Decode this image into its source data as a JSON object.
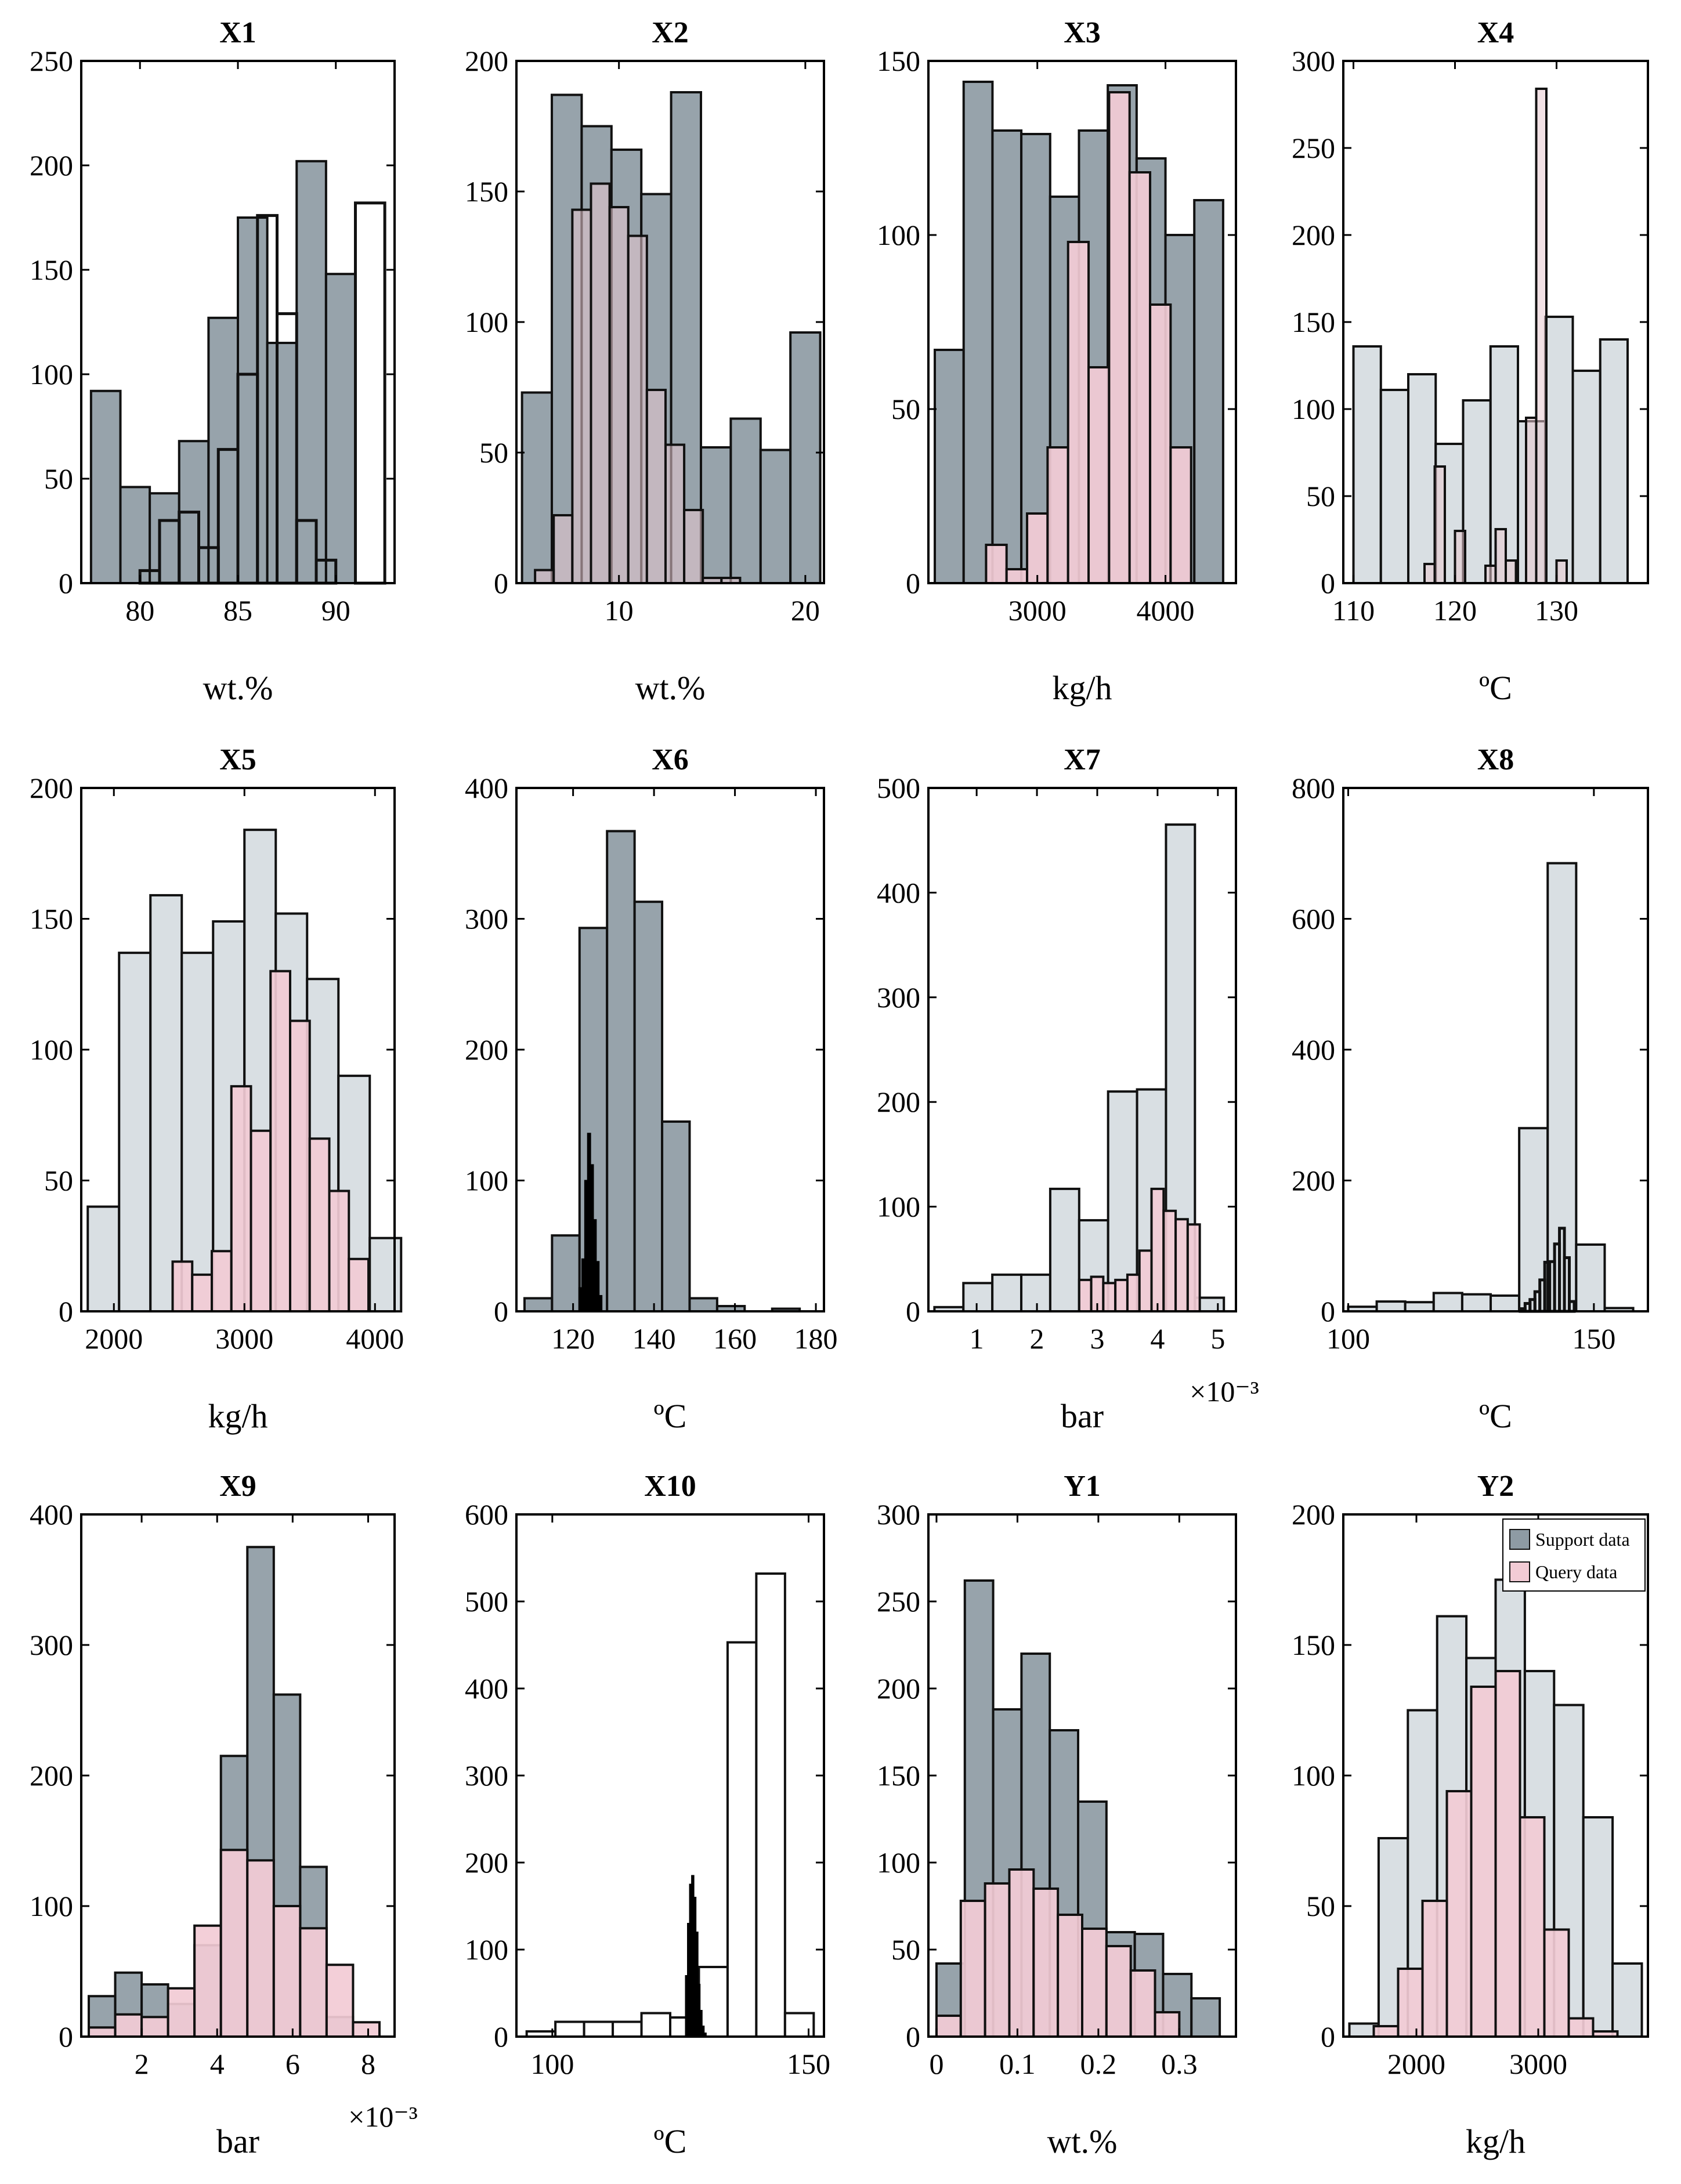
{
  "colors": {
    "support": "#8e9ba4",
    "support_light": "#d7dde1",
    "query": "#f2cbd5",
    "edge": "#111111",
    "axis": "#000000"
  },
  "legend": {
    "support_label": "Support data",
    "query_label": "Query data"
  },
  "chart_data": [
    {
      "type": "histogram",
      "title": "X1",
      "xlabel": "wt.%",
      "ylabel": "",
      "xlim": [
        77,
        93
      ],
      "ylim": [
        0,
        250
      ],
      "xticks": [
        80,
        85,
        90
      ],
      "yticks": [
        0,
        50,
        100,
        150,
        200,
        250
      ],
      "series": [
        {
          "name": "Support data",
          "edges": [
            77.5,
            79,
            80.5,
            82,
            83.5,
            85,
            86.5,
            88,
            89.5,
            91
          ],
          "counts": [
            92,
            46,
            43,
            68,
            127,
            175,
            115,
            202,
            148
          ],
          "style": "support"
        },
        {
          "name": "Query data",
          "edges": [
            80,
            81,
            82,
            83,
            84,
            85,
            86,
            87,
            88,
            89,
            90,
            91,
            92.5
          ],
          "counts": [
            6,
            30,
            34,
            17,
            64,
            100,
            176,
            129,
            30,
            11,
            0,
            182
          ],
          "style": "outline"
        }
      ]
    },
    {
      "type": "histogram",
      "title": "X2",
      "xlabel": "wt.%",
      "ylabel": "",
      "xlim": [
        4.5,
        21
      ],
      "ylim": [
        0,
        200
      ],
      "xticks": [
        10,
        20
      ],
      "yticks": [
        0,
        50,
        100,
        150,
        200
      ],
      "series": [
        {
          "name": "Support data",
          "edges": [
            4.8,
            6.4,
            8,
            9.6,
            11.2,
            12.8,
            14.4,
            16,
            17.6,
            19.2,
            20.8
          ],
          "counts": [
            73,
            187,
            175,
            166,
            149,
            188,
            52,
            63,
            51,
            96
          ],
          "style": "support"
        },
        {
          "name": "Query data",
          "edges": [
            5.5,
            6.5,
            7.5,
            8.5,
            9.5,
            10.5,
            11.5,
            12.5,
            13.5,
            14.5,
            15.5,
            16.5
          ],
          "counts": [
            5,
            26,
            143,
            153,
            144,
            133,
            74,
            53,
            28,
            2,
            2
          ],
          "style": "query_dark"
        }
      ]
    },
    {
      "type": "histogram",
      "title": "X3",
      "xlabel": "kg/h",
      "ylabel": "",
      "xlim": [
        2150,
        4550
      ],
      "ylim": [
        0,
        150
      ],
      "xticks": [
        3000,
        4000
      ],
      "yticks": [
        0,
        50,
        100,
        150
      ],
      "series": [
        {
          "name": "Support data",
          "edges": [
            2200,
            2425,
            2650,
            2875,
            3100,
            3325,
            3550,
            3775,
            4000,
            4225,
            4450
          ],
          "counts": [
            67,
            144,
            130,
            129,
            111,
            130,
            143,
            122,
            100,
            110
          ],
          "style": "support"
        },
        {
          "name": "Query data",
          "edges": [
            2600,
            2760,
            2920,
            3080,
            3240,
            3400,
            3560,
            3720,
            3880,
            4040,
            4200
          ],
          "counts": [
            11,
            4,
            20,
            39,
            98,
            62,
            141,
            118,
            80,
            39
          ],
          "style": "query"
        }
      ]
    },
    {
      "type": "histogram",
      "title": "X4",
      "xlabel": "ºC",
      "ylabel": "",
      "xlim": [
        109,
        139
      ],
      "ylim": [
        0,
        300
      ],
      "xticks": [
        110,
        120,
        130
      ],
      "yticks": [
        0,
        50,
        100,
        150,
        200,
        250,
        300
      ],
      "series": [
        {
          "name": "Support data",
          "edges": [
            110,
            112.7,
            115.4,
            118.1,
            120.8,
            123.5,
            126.2,
            128.9,
            131.6,
            134.3,
            137
          ],
          "counts": [
            136,
            111,
            120,
            80,
            105,
            136,
            93,
            153,
            122,
            140
          ],
          "style": "support_light"
        },
        {
          "name": "Query data",
          "edges": [
            117,
            118,
            119,
            120,
            121,
            122,
            123,
            124,
            125,
            126,
            127,
            128,
            129,
            130,
            131
          ],
          "counts": [
            11,
            67,
            0,
            30,
            0,
            0,
            10,
            31,
            13,
            0,
            95,
            284,
            0,
            13
          ],
          "style": "query_dark"
        }
      ]
    },
    {
      "type": "histogram",
      "title": "X5",
      "xlabel": "kg/h",
      "ylabel": "",
      "xlim": [
        1750,
        4150
      ],
      "ylim": [
        0,
        200
      ],
      "xticks": [
        2000,
        3000,
        4000
      ],
      "yticks": [
        0,
        50,
        100,
        150,
        200
      ],
      "series": [
        {
          "name": "Support data",
          "edges": [
            1800,
            2040,
            2280,
            2520,
            2760,
            3000,
            3240,
            3480,
            3720,
            3960,
            4200
          ],
          "counts": [
            40,
            137,
            159,
            137,
            149,
            184,
            152,
            127,
            90,
            28
          ],
          "style": "support_light"
        },
        {
          "name": "Query data",
          "edges": [
            2450,
            2600,
            2750,
            2900,
            3050,
            3200,
            3350,
            3500,
            3650,
            3800,
            3950
          ],
          "counts": [
            19,
            14,
            23,
            86,
            69,
            130,
            111,
            66,
            46,
            20
          ],
          "style": "query"
        }
      ]
    },
    {
      "type": "histogram",
      "title": "X6",
      "xlabel": "ºC",
      "ylabel": "",
      "xlim": [
        106,
        182
      ],
      "ylim": [
        0,
        400
      ],
      "xticks": [
        120,
        140,
        160,
        180
      ],
      "yticks": [
        0,
        100,
        200,
        300,
        400
      ],
      "series": [
        {
          "name": "Support data",
          "edges": [
            108,
            114.8,
            121.6,
            128.4,
            135.2,
            142,
            148.8,
            155.6,
            162.4,
            169.2,
            176
          ],
          "counts": [
            10,
            58,
            293,
            367,
            313,
            145,
            10,
            4,
            0,
            2
          ],
          "style": "support"
        },
        {
          "name": "Query data",
          "edges": [
            121.5,
            122.2,
            122.9,
            123.6,
            124.3,
            125,
            125.7,
            126.4,
            127.1
          ],
          "counts": [
            18,
            40,
            100,
            136,
            112,
            70,
            38,
            12
          ],
          "style": "black"
        }
      ]
    },
    {
      "type": "histogram",
      "title": "X7",
      "xlabel": "bar",
      "ylabel": "",
      "xlim": [
        0.0002,
        0.0053
      ],
      "ylim": [
        0,
        500
      ],
      "exponent_label": "×10⁻³",
      "xticks": [
        0.001,
        0.002,
        0.003,
        0.004,
        0.005
      ],
      "xticklabels": [
        "1",
        "2",
        "3",
        "4",
        "5"
      ],
      "yticks": [
        0,
        100,
        200,
        300,
        400,
        500
      ],
      "series": [
        {
          "name": "Support data",
          "edges": [
            0.0003,
            0.00078,
            0.00126,
            0.00174,
            0.00222,
            0.0027,
            0.00318,
            0.00366,
            0.00414,
            0.00462,
            0.0051
          ],
          "counts": [
            4,
            27,
            35,
            35,
            117,
            87,
            210,
            212,
            465,
            13
          ],
          "style": "support_light"
        },
        {
          "name": "Query data",
          "edges": [
            0.0027,
            0.0029,
            0.0031,
            0.0033,
            0.0035,
            0.0037,
            0.0039,
            0.0041,
            0.0043,
            0.0045,
            0.0047
          ],
          "counts": [
            30,
            33,
            27,
            30,
            35,
            58,
            117,
            96,
            88,
            83
          ],
          "style": "query"
        }
      ]
    },
    {
      "type": "histogram",
      "title": "X8",
      "xlabel": "ºC",
      "ylabel": "",
      "xlim": [
        99,
        161
      ],
      "ylim": [
        0,
        800
      ],
      "xticks": [
        100,
        150
      ],
      "yticks": [
        0,
        200,
        400,
        600,
        800
      ],
      "series": [
        {
          "name": "Support data",
          "edges": [
            100,
            105.8,
            111.6,
            117.4,
            123.2,
            129,
            134.8,
            140.6,
            146.4,
            152.2,
            158
          ],
          "counts": [
            7,
            15,
            14,
            28,
            26,
            24,
            280,
            685,
            102,
            5
          ],
          "style": "support_light"
        },
        {
          "name": "Query data",
          "edges": [
            135,
            136,
            137,
            138,
            139,
            140,
            141,
            142,
            143,
            144,
            145,
            146
          ],
          "counts": [
            4,
            12,
            18,
            30,
            48,
            75,
            76,
            103,
            127,
            82,
            15
          ],
          "style": "outline"
        }
      ]
    },
    {
      "type": "histogram",
      "title": "X9",
      "xlabel": "bar",
      "ylabel": "",
      "xlim": [
        0.0004,
        0.0087
      ],
      "ylim": [
        0,
        400
      ],
      "exponent_label": "×10⁻³",
      "xticks": [
        0.002,
        0.004,
        0.006,
        0.008
      ],
      "xticklabels": [
        "2",
        "4",
        "6",
        "8"
      ],
      "yticks": [
        0,
        100,
        200,
        300,
        400
      ],
      "series": [
        {
          "name": "Support data",
          "edges": [
            0.0006,
            0.0013,
            0.002,
            0.0027,
            0.0034,
            0.0041,
            0.0048,
            0.0055,
            0.0062,
            0.0069,
            0.0076
          ],
          "counts": [
            31,
            49,
            40,
            25,
            70,
            215,
            375,
            262,
            130,
            15
          ],
          "style": "support"
        },
        {
          "name": "Query data",
          "edges": [
            0.0006,
            0.0013,
            0.002,
            0.0027,
            0.0034,
            0.0041,
            0.0048,
            0.0055,
            0.0062,
            0.0069,
            0.0076,
            0.0083
          ],
          "counts": [
            7,
            17,
            15,
            37,
            85,
            143,
            135,
            100,
            83,
            55,
            11
          ],
          "style": "query"
        }
      ]
    },
    {
      "type": "histogram",
      "title": "X10",
      "xlabel": "ºC",
      "ylabel": "",
      "xlim": [
        93,
        153
      ],
      "ylim": [
        0,
        600
      ],
      "xticks": [
        100,
        150
      ],
      "yticks": [
        0,
        100,
        200,
        300,
        400,
        500,
        600
      ],
      "series": [
        {
          "name": "Support data",
          "edges": [
            95,
            100.6,
            106.2,
            111.8,
            117.4,
            123,
            128.6,
            134.2,
            139.8,
            145.4,
            151
          ],
          "counts": [
            6,
            17,
            17,
            17,
            27,
            22,
            80,
            453,
            532,
            27
          ],
          "style": "outline_support"
        },
        {
          "name": "Query data",
          "edges": [
            126,
            126.4,
            126.8,
            127.2,
            127.6,
            128,
            128.4,
            128.8,
            129.2,
            129.6,
            130
          ],
          "counts": [
            70,
            130,
            175,
            185,
            160,
            120,
            60,
            30,
            12,
            4
          ],
          "style": "black"
        }
      ]
    },
    {
      "type": "histogram",
      "title": "Y1",
      "xlabel": "wt.%",
      "ylabel": "",
      "xlim": [
        -0.01,
        0.37
      ],
      "ylim": [
        0,
        300
      ],
      "xticks": [
        0,
        0.1,
        0.2,
        0.3
      ],
      "xticklabels": [
        "0",
        "0.1",
        "0.2",
        "0.3"
      ],
      "yticks": [
        0,
        50,
        100,
        150,
        200,
        250,
        300
      ],
      "series": [
        {
          "name": "Support data",
          "edges": [
            0,
            0.035,
            0.07,
            0.105,
            0.14,
            0.175,
            0.21,
            0.245,
            0.28,
            0.315,
            0.35
          ],
          "counts": [
            42,
            262,
            188,
            220,
            176,
            135,
            60,
            59,
            36,
            22
          ],
          "style": "support"
        },
        {
          "name": "Query data",
          "edges": [
            0,
            0.03,
            0.06,
            0.09,
            0.12,
            0.15,
            0.18,
            0.21,
            0.24,
            0.27,
            0.3
          ],
          "counts": [
            12,
            78,
            88,
            96,
            85,
            70,
            62,
            52,
            38,
            14
          ],
          "style": "query"
        }
      ]
    },
    {
      "type": "histogram",
      "title": "Y2",
      "xlabel": "kg/h",
      "ylabel": "",
      "xlim": [
        1400,
        3900
      ],
      "ylim": [
        0,
        200
      ],
      "xticks": [
        2000,
        3000
      ],
      "yticks": [
        0,
        50,
        100,
        150,
        200
      ],
      "series": [
        {
          "name": "Support data",
          "edges": [
            1450,
            1690,
            1930,
            2170,
            2410,
            2650,
            2890,
            3130,
            3370,
            3610,
            3850
          ],
          "counts": [
            5,
            76,
            125,
            161,
            145,
            175,
            140,
            127,
            84,
            28
          ],
          "style": "support_light"
        },
        {
          "name": "Query data",
          "edges": [
            1650,
            1850,
            2050,
            2250,
            2450,
            2650,
            2850,
            3050,
            3250,
            3450,
            3650
          ],
          "counts": [
            4,
            26,
            52,
            94,
            134,
            140,
            84,
            41,
            7,
            2
          ],
          "style": "query"
        }
      ]
    }
  ]
}
